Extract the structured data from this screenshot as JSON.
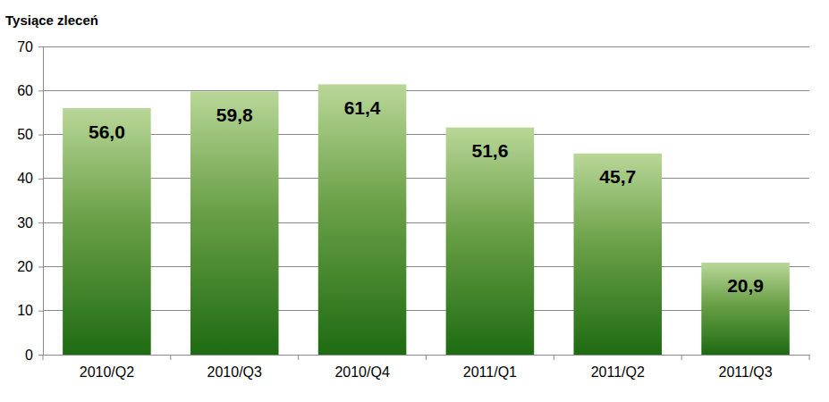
{
  "chart_data": {
    "type": "bar",
    "y_label": "Tysiące zleceń",
    "categories": [
      "2010/Q2",
      "2010/Q3",
      "2010/Q4",
      "2011/Q1",
      "2011/Q2",
      "2011/Q3"
    ],
    "values": [
      56.0,
      59.8,
      61.4,
      51.6,
      45.7,
      20.9
    ],
    "value_labels": [
      "56,0",
      "59,8",
      "61,4",
      "51,6",
      "45,7",
      "20,9"
    ],
    "color": "#1e6b12",
    "ylim": [
      0,
      70
    ],
    "yticks": [
      0,
      10,
      20,
      30,
      40,
      50,
      60,
      70
    ],
    "grid": true,
    "data_labels": true
  }
}
